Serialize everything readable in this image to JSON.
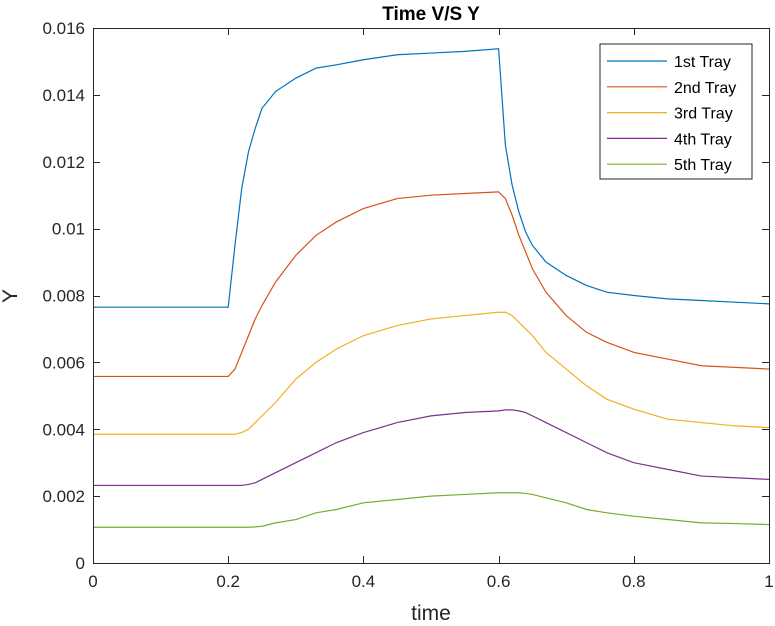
{
  "chart_data": {
    "type": "line",
    "title": "Time V/S Y",
    "xlabel": "time",
    "ylabel": "Y",
    "xlim": [
      0,
      1
    ],
    "ylim": [
      0,
      0.016
    ],
    "xticks": [
      0,
      0.2,
      0.4,
      0.6,
      0.8,
      1
    ],
    "xtick_labels": [
      "0",
      "0.2",
      "0.4",
      "0.6",
      "0.8",
      "1"
    ],
    "yticks": [
      0,
      0.002,
      0.004,
      0.006,
      0.008,
      0.01,
      0.012,
      0.014,
      0.016
    ],
    "ytick_labels": [
      "0",
      "0.002",
      "0.004",
      "0.006",
      "0.008",
      "0.01",
      "0.012",
      "0.014",
      "0.016"
    ],
    "grid": false,
    "legend_position": "top-right",
    "x": [
      0,
      0.05,
      0.1,
      0.15,
      0.2,
      0.21,
      0.22,
      0.23,
      0.24,
      0.25,
      0.27,
      0.3,
      0.33,
      0.36,
      0.4,
      0.45,
      0.5,
      0.55,
      0.6,
      0.61,
      0.62,
      0.63,
      0.64,
      0.65,
      0.67,
      0.7,
      0.73,
      0.76,
      0.8,
      0.85,
      0.9,
      0.95,
      1.0
    ],
    "series": [
      {
        "name": "1st Tray",
        "color": "#0072BD",
        "values": [
          0.00765,
          0.00765,
          0.00765,
          0.00765,
          0.00765,
          0.0095,
          0.0112,
          0.0123,
          0.013,
          0.0136,
          0.0141,
          0.0145,
          0.0148,
          0.0149,
          0.01505,
          0.0152,
          0.01525,
          0.0153,
          0.01538,
          0.0125,
          0.0113,
          0.0105,
          0.0099,
          0.0095,
          0.009,
          0.0086,
          0.0083,
          0.0081,
          0.008,
          0.0079,
          0.00785,
          0.0078,
          0.00775
        ]
      },
      {
        "name": "2nd Tray",
        "color": "#D95319",
        "values": [
          0.00558,
          0.00558,
          0.00558,
          0.00558,
          0.00558,
          0.0058,
          0.0063,
          0.0068,
          0.0073,
          0.0077,
          0.0084,
          0.0092,
          0.0098,
          0.0102,
          0.0106,
          0.0109,
          0.011,
          0.01105,
          0.0111,
          0.0109,
          0.0104,
          0.0098,
          0.0093,
          0.0088,
          0.0081,
          0.0074,
          0.0069,
          0.0066,
          0.0063,
          0.0061,
          0.0059,
          0.00585,
          0.0058
        ]
      },
      {
        "name": "3rd Tray",
        "color": "#EDB120",
        "values": [
          0.00385,
          0.00385,
          0.00385,
          0.00385,
          0.00385,
          0.00385,
          0.0039,
          0.004,
          0.0042,
          0.0044,
          0.0048,
          0.0055,
          0.006,
          0.0064,
          0.0068,
          0.0071,
          0.0073,
          0.0074,
          0.0075,
          0.0075,
          0.0074,
          0.0072,
          0.007,
          0.0068,
          0.0063,
          0.0058,
          0.0053,
          0.0049,
          0.0046,
          0.0043,
          0.0042,
          0.0041,
          0.00405
        ]
      },
      {
        "name": "4th Tray",
        "color": "#7E2F8E",
        "values": [
          0.00232,
          0.00232,
          0.00232,
          0.00232,
          0.00232,
          0.00232,
          0.00232,
          0.00235,
          0.0024,
          0.0025,
          0.0027,
          0.003,
          0.0033,
          0.0036,
          0.0039,
          0.0042,
          0.0044,
          0.0045,
          0.00455,
          0.00458,
          0.00458,
          0.00455,
          0.0045,
          0.0044,
          0.0042,
          0.0039,
          0.0036,
          0.0033,
          0.003,
          0.0028,
          0.0026,
          0.00255,
          0.0025
        ]
      },
      {
        "name": "5th Tray",
        "color": "#77AC30",
        "values": [
          0.00107,
          0.00107,
          0.00107,
          0.00107,
          0.00107,
          0.00107,
          0.00107,
          0.00107,
          0.00108,
          0.0011,
          0.0012,
          0.0013,
          0.0015,
          0.0016,
          0.0018,
          0.0019,
          0.002,
          0.00205,
          0.0021,
          0.0021,
          0.0021,
          0.0021,
          0.00208,
          0.00205,
          0.00195,
          0.0018,
          0.0016,
          0.0015,
          0.0014,
          0.0013,
          0.0012,
          0.00118,
          0.00115
        ]
      }
    ]
  }
}
